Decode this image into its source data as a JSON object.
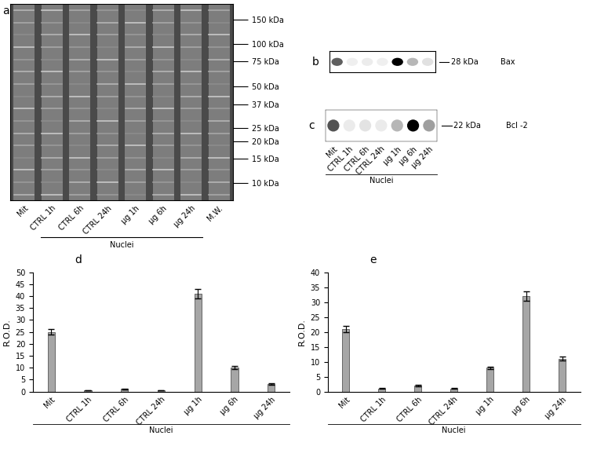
{
  "chart_data": [
    {
      "type": "bar",
      "annotations": [
        "d"
      ],
      "categories": [
        "Mit",
        "CTRL 1h",
        "CTRL 6h",
        "CTRL 24h",
        "µg 1h",
        "µg 6h",
        "µg 24h"
      ],
      "values": [
        25,
        0.5,
        1,
        0.5,
        41,
        10,
        3
      ],
      "errors": [
        1.2,
        0.1,
        0.1,
        0.1,
        2,
        0.7,
        0.3
      ],
      "y_label": "R.O.D.",
      "x_label": "Nuclei",
      "color": "#a6a6a6",
      "ylim": [
        0,
        50
      ],
      "yticks": [
        0,
        5,
        10,
        15,
        20,
        25,
        30,
        35,
        40,
        45,
        50
      ]
    },
    {
      "type": "bar",
      "annotations": [
        "e"
      ],
      "categories": [
        "Mit",
        "CTRL 1h",
        "CTRL 6h",
        "CTRL 24h",
        "µg 1h",
        "µg 6h",
        "µg 24h"
      ],
      "values": [
        21,
        1,
        2,
        1,
        8,
        32,
        11
      ],
      "errors": [
        1,
        0.2,
        0.2,
        0.1,
        0.4,
        1.5,
        0.6
      ],
      "y_label": "R.O.D.",
      "x_label": "Nuclei",
      "color": "#a6a6a6",
      "ylim": [
        0,
        40
      ],
      "yticks": [
        0,
        5,
        10,
        15,
        20,
        25,
        30,
        35,
        40
      ]
    }
  ],
  "gel": {
    "panel": "a",
    "lanes": [
      "Mit",
      "CTRL 1h",
      "CTRL 6h",
      "CTRL 24h",
      "µg 1h",
      "µg 6h",
      "µg 24h",
      "M.W."
    ],
    "group_label": "Nuclei",
    "markers": [
      {
        "value": 150,
        "label": "150 kDa"
      },
      {
        "value": 100,
        "label": "100 kDa"
      },
      {
        "value": 75,
        "label": "75 kDa"
      },
      {
        "value": 50,
        "label": "50 kDa"
      },
      {
        "value": 37,
        "label": "37 kDa"
      },
      {
        "value": 25,
        "label": "25 kDa"
      },
      {
        "value": 20,
        "label": "20 kDa"
      },
      {
        "value": 15,
        "label": "15 kDa"
      },
      {
        "value": 10,
        "label": "10 kDa"
      }
    ]
  },
  "blots": [
    {
      "panel": "b",
      "protein": "Bax",
      "size_label": "28 kDa"
    },
    {
      "panel": "c",
      "protein": "Bcl -2",
      "size_label": "22 kDa",
      "lanes": [
        "Mit",
        "CTRL 1h",
        "CTRL 6h",
        "CTRL 24h",
        "µg 1h",
        "µg 6h",
        "µg 24h"
      ],
      "group_label": "Nuclei"
    }
  ]
}
